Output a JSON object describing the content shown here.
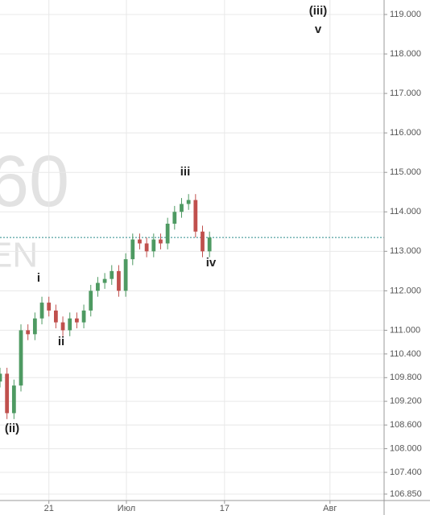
{
  "chart_data": {
    "type": "candlestick",
    "watermark": [
      "60",
      "EN"
    ],
    "annotations": [
      "(iii)",
      "v",
      "iii",
      "iv",
      "i",
      "ii",
      "(ii)"
    ],
    "x": [
      0,
      2,
      4,
      6,
      8,
      10,
      12,
      14,
      16,
      18,
      20,
      22,
      24,
      26,
      28,
      30,
      32,
      34,
      36,
      38,
      40,
      42,
      44,
      46,
      48,
      50,
      52,
      54,
      56,
      58,
      60
    ],
    "open": [
      109.7,
      109.9,
      108.9,
      109.6,
      111.0,
      110.9,
      111.3,
      111.7,
      111.5,
      111.2,
      111.0,
      111.3,
      111.2,
      111.5,
      112.0,
      112.2,
      112.3,
      112.5,
      112.0,
      112.8,
      113.3,
      113.2,
      113.0,
      113.3,
      113.2,
      113.7,
      114.0,
      114.2,
      114.3,
      113.5,
      113.0
    ],
    "high": [
      110.05,
      110.05,
      109.75,
      111.15,
      111.15,
      111.45,
      111.85,
      111.85,
      111.65,
      111.35,
      111.45,
      111.45,
      111.65,
      112.15,
      112.35,
      112.45,
      112.65,
      112.65,
      112.95,
      113.45,
      113.45,
      113.35,
      113.45,
      113.45,
      113.85,
      114.15,
      114.35,
      114.45,
      114.45,
      113.65,
      113.5
    ],
    "low": [
      109.55,
      108.75,
      108.75,
      109.45,
      110.75,
      110.75,
      111.15,
      111.35,
      111.05,
      110.85,
      110.85,
      111.05,
      111.05,
      111.35,
      111.85,
      112.05,
      112.15,
      111.85,
      111.85,
      112.65,
      113.05,
      112.85,
      112.85,
      113.05,
      113.05,
      113.55,
      113.85,
      114.05,
      113.35,
      112.85,
      112.85
    ],
    "close": [
      109.9,
      108.9,
      109.6,
      111.0,
      110.9,
      111.3,
      111.7,
      111.5,
      111.2,
      111.0,
      111.3,
      111.2,
      111.5,
      112.0,
      112.2,
      112.3,
      112.5,
      112.0,
      112.8,
      113.3,
      113.2,
      113.0,
      113.3,
      113.2,
      113.7,
      114.0,
      114.2,
      114.3,
      113.5,
      113.0,
      113.35
    ],
    "up_color": "#4e9a62",
    "down_color": "#c0504d",
    "price_line": 113.35,
    "price_line_color": "#2a8a8a",
    "xlim": [
      0,
      110
    ],
    "xticks": [
      {
        "value": 14,
        "label": "21"
      },
      {
        "value": 36.2,
        "label": "Июл"
      },
      {
        "value": 64.3,
        "label": "17"
      },
      {
        "value": 94.5,
        "label": "Авг"
      }
    ],
    "ylim": [
      106.85,
      119.0
    ],
    "yticks": [
      {
        "value": 119,
        "label": "119.000"
      },
      {
        "value": 118,
        "label": "118.000"
      },
      {
        "value": 117,
        "label": "117.000"
      },
      {
        "value": 116,
        "label": "116.000"
      },
      {
        "value": 115,
        "label": "115.000"
      },
      {
        "value": 114,
        "label": "114.000"
      },
      {
        "value": 113,
        "label": "113.000"
      },
      {
        "value": 112,
        "label": "112.000"
      },
      {
        "value": 111,
        "label": "111.000"
      },
      {
        "value": 110.4,
        "label": "110.400"
      },
      {
        "value": 109.8,
        "label": "109.800"
      },
      {
        "value": 109.2,
        "label": "109.200"
      },
      {
        "value": 108.6,
        "label": "108.600"
      },
      {
        "value": 108,
        "label": "108.000"
      },
      {
        "value": 107.4,
        "label": "107.400"
      },
      {
        "value": 106.85,
        "label": "106.850"
      }
    ],
    "grid": true
  }
}
